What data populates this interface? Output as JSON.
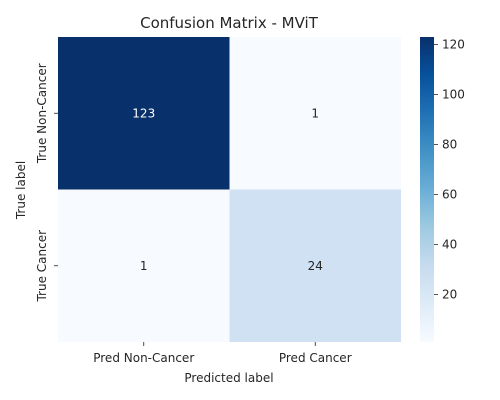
{
  "chart_data": {
    "type": "heatmap",
    "title": "Confusion Matrix - MViT",
    "xlabel": "Predicted label",
    "ylabel": "True label",
    "x_categories": [
      "Pred Non-Cancer",
      "Pred Cancer"
    ],
    "y_categories": [
      "True Non-Cancer",
      "True Cancer"
    ],
    "values": [
      [
        123,
        1
      ],
      [
        1,
        24
      ]
    ],
    "colorscale": "Blues",
    "colorbar": {
      "range": [
        1,
        123
      ],
      "ticks": [
        20,
        40,
        60,
        80,
        100,
        120
      ]
    },
    "cell_colors": [
      [
        "#08306b",
        "#f7fbff"
      ],
      [
        "#f7fbff",
        "#cfe1f2"
      ]
    ],
    "annotation_colors": [
      [
        "#ffffff",
        "#262626"
      ],
      [
        "#262626",
        "#262626"
      ]
    ],
    "grid": false,
    "legend": "right"
  }
}
